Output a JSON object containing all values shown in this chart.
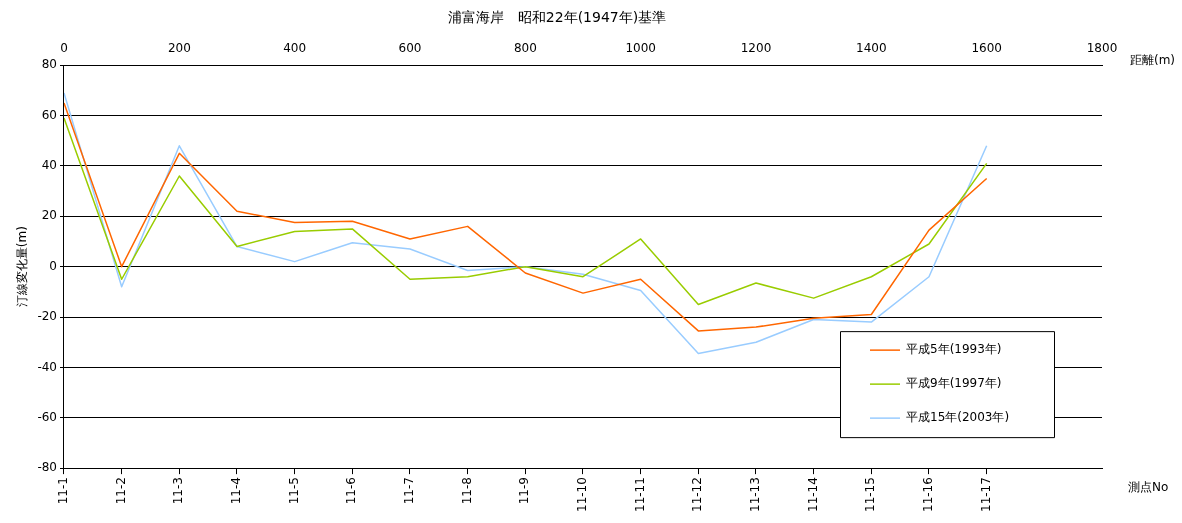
{
  "chart_data": {
    "type": "line",
    "title": "浦富海岸　昭和22年(1947年)基準",
    "ylabel": "汀線変化量(m)",
    "xlabel": "測点No",
    "x2label": "距離(m)",
    "categories": [
      "11-1",
      "11-2",
      "11-3",
      "11-4",
      "11-5",
      "11-6",
      "11-7",
      "11-8",
      "11-9",
      "11-10",
      "11-11",
      "11-12",
      "11-13",
      "11-14",
      "11-15",
      "11-16",
      "11-17"
    ],
    "x2lim": [
      0,
      1800
    ],
    "x2ticks": [
      0,
      200,
      400,
      600,
      800,
      1000,
      1200,
      1400,
      1600,
      1800
    ],
    "ylim": [
      -80,
      80
    ],
    "yticks": [
      -80,
      -60,
      -40,
      -20,
      0,
      20,
      40,
      60,
      80
    ],
    "grid": "y",
    "legend": "bottom right",
    "marker": "none",
    "line_style": "solid",
    "series": [
      {
        "name": "平成5年(1993年)",
        "color": "#ff6600",
        "values": [
          65,
          0,
          45,
          22,
          17.5,
          18,
          11,
          16,
          -2.5,
          -10.5,
          -5,
          -25.5,
          -24,
          -20.5,
          -19,
          14.5,
          35
        ]
      },
      {
        "name": "平成9年(1997年)",
        "color": "#99cc00",
        "values": [
          59,
          -5,
          36,
          8,
          14,
          15,
          -5,
          -4,
          0,
          -4,
          11,
          -15,
          -6.5,
          -12.5,
          -4,
          9,
          41
        ]
      },
      {
        "name": "平成15年(2003年)",
        "color": "#99ccff",
        "values": [
          69,
          -8,
          48,
          8,
          2,
          9.5,
          7,
          -1.5,
          0,
          -3,
          -9.5,
          -34.5,
          -30,
          -21,
          -22,
          -4,
          48
        ]
      }
    ]
  }
}
